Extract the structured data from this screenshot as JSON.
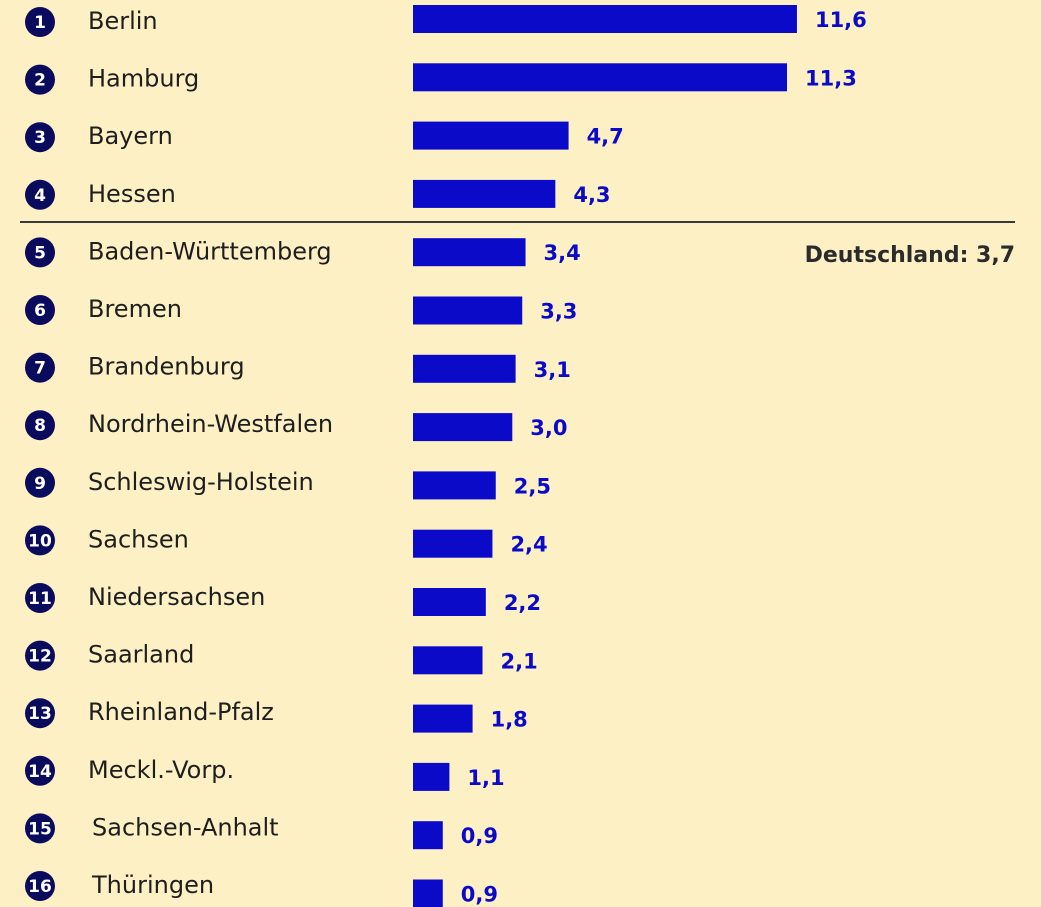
{
  "chart_data": {
    "type": "bar",
    "orientation": "horizontal",
    "color": "#0a0ac8",
    "ranks": [
      "1",
      "2",
      "3",
      "4",
      "5",
      "6",
      "7",
      "8",
      "9",
      "10",
      "11",
      "12",
      "13",
      "14",
      "15",
      "16"
    ],
    "categories": [
      "Berlin",
      "Hamburg",
      "Bayern",
      "Hessen",
      "Baden-Württemberg",
      "Bremen",
      "Brandenburg",
      "Nordrhein-Westfalen",
      "Schleswig-Holstein",
      "Sachsen",
      "Niedersachsen",
      "Saarland",
      "Rheinland-Pfalz",
      "Meckl.-Vorp.",
      "Sachsen-Anhalt",
      "Thüringen"
    ],
    "values": [
      11.6,
      11.3,
      4.7,
      4.3,
      3.4,
      3.3,
      3.1,
      3.0,
      2.5,
      2.4,
      2.2,
      2.1,
      1.8,
      1.1,
      0.9,
      0.9
    ],
    "value_labels": [
      "11,6",
      "11,3",
      "4,7",
      "4,3",
      "3,4",
      "3,3",
      "3,1",
      "3,0",
      "2,5",
      "2,4",
      "2,2",
      "2,1",
      "1,8",
      "1,1",
      "0,9",
      "0,9"
    ],
    "reference": {
      "label": "Deutschland: 3,7",
      "value": 3.7
    }
  }
}
